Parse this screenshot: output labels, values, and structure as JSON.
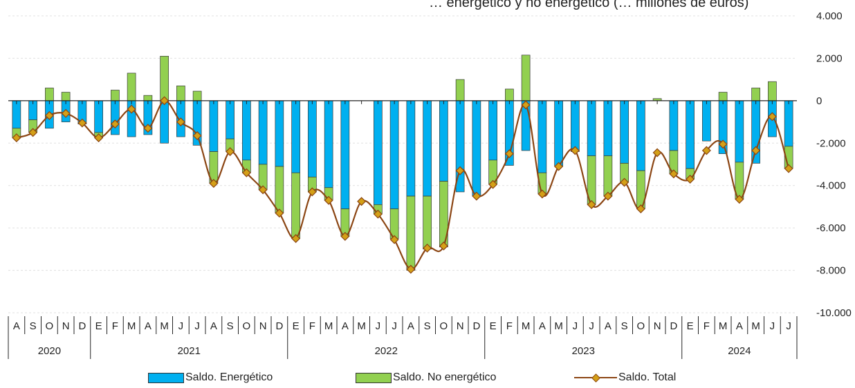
{
  "title": "… energético y no energético (… millones de euros)",
  "colors": {
    "energetico": "#00B0F0",
    "no_energetico": "#92D050",
    "total_line": "#8B4513",
    "total_marker": "#D4A017",
    "axis": "#222222",
    "grid": "#E0E0E0"
  },
  "legend": {
    "energetico": "Saldo. Energético",
    "no_energetico": "Saldo. No energético",
    "total": "Saldo. Total"
  },
  "chart_data": {
    "type": "bar",
    "title": "… energético y no energético (… millones de euros)",
    "ylim": [
      -10000,
      4000
    ],
    "yticks": [
      4000,
      2000,
      0,
      -2000,
      -4000,
      -6000,
      -8000,
      -10000
    ],
    "ytick_labels": [
      "4.000",
      "2.000",
      "0",
      "-2.000",
      "-4.000",
      "-6.000",
      "-8.000",
      "-10.000"
    ],
    "grid": true,
    "legend_position": "bottom",
    "categories": [
      "A",
      "S",
      "O",
      "N",
      "D",
      "E",
      "F",
      "M",
      "A",
      "M",
      "J",
      "J",
      "A",
      "S",
      "O",
      "N",
      "D",
      "E",
      "F",
      "M",
      "A",
      "M",
      "J",
      "J",
      "A",
      "S",
      "O",
      "N",
      "D",
      "E",
      "F",
      "M",
      "A",
      "M",
      "J",
      "J",
      "A",
      "S",
      "O",
      "N",
      "D",
      "E",
      "F",
      "M",
      "A",
      "M",
      "J",
      "J"
    ],
    "years": [
      {
        "label": "2020",
        "months": 5
      },
      {
        "label": "2021",
        "months": 12
      },
      {
        "label": "2022",
        "months": 12
      },
      {
        "label": "2023",
        "months": 12
      },
      {
        "label": "2024",
        "months": 7
      }
    ],
    "series": [
      {
        "name": "Saldo. Energético",
        "kind": "stacked-bar",
        "values": [
          -1300,
          -900,
          -1300,
          -1000,
          -1100,
          -1500,
          -1600,
          -1700,
          -1600,
          -2000,
          -1700,
          -2100,
          -2400,
          -1800,
          -2800,
          -3000,
          -3100,
          -3400,
          -3600,
          -4100,
          -5100,
          0,
          -4900,
          -5100,
          -4500,
          -4500,
          -3800,
          -4300,
          -4500,
          -2800,
          -3050,
          -2350,
          -3400,
          -3100,
          -2400,
          -2600,
          -2600,
          -2950,
          -3300,
          0,
          -2350,
          -3200,
          -1900,
          -2500,
          -2900,
          -2950,
          -1700,
          -2150
        ]
      },
      {
        "name": "Saldo. No energético",
        "kind": "stacked-bar",
        "values": [
          -450,
          -600,
          600,
          400,
          0,
          -250,
          500,
          1300,
          250,
          2100,
          700,
          450,
          -1500,
          -600,
          -600,
          -1200,
          -2200,
          -3100,
          -700,
          -600,
          -1300,
          0,
          -450,
          -1400,
          -3500,
          -2500,
          -3100,
          1000,
          0,
          -1150,
          550,
          2150,
          -1000,
          0,
          0,
          -2300,
          -1900,
          -900,
          -1800,
          100,
          -1100,
          -500,
          0,
          400,
          -1750,
          600,
          900,
          -1050
        ]
      },
      {
        "name": "Saldo. Total",
        "kind": "line",
        "values": [
          -1750,
          -1500,
          -700,
          -600,
          -1050,
          -1750,
          -1100,
          -400,
          -1300,
          0,
          -1000,
          -1650,
          -3900,
          -2400,
          -3400,
          -4200,
          -5300,
          -6500,
          -4300,
          -4700,
          -6400,
          -4750,
          -5350,
          -6550,
          -7950,
          -6950,
          -6850,
          -3300,
          -4500,
          -3950,
          -2500,
          -200,
          -4400,
          -3100,
          -2350,
          -4900,
          -4500,
          -3850,
          -5100,
          -2450,
          -3450,
          -3700,
          -2350,
          -2050,
          -4650,
          -2350,
          -750,
          -3200
        ]
      }
    ]
  }
}
